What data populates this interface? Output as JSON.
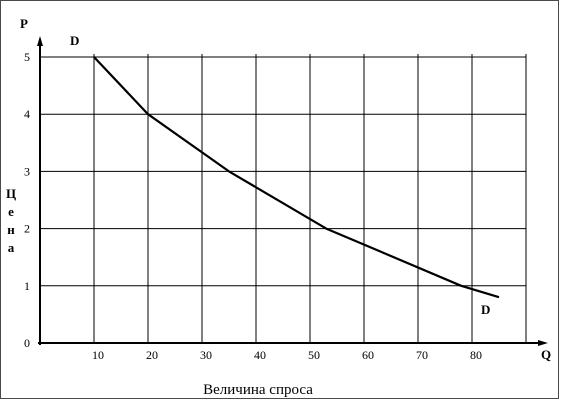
{
  "chart_data": {
    "type": "line",
    "title": "",
    "xlabel": "Величина спроса",
    "ylabel": "Цена",
    "x_axis_letter": "Q",
    "y_axis_letter": "P",
    "xlim": [
      0,
      90
    ],
    "ylim": [
      0,
      5.2
    ],
    "x_ticks": [
      10,
      20,
      30,
      40,
      50,
      60,
      70,
      80
    ],
    "y_ticks": [
      0,
      1,
      2,
      3,
      4,
      5
    ],
    "grid": true,
    "series": [
      {
        "name": "D",
        "x": [
          10,
          20,
          35,
          53,
          78,
          85
        ],
        "y": [
          5,
          4,
          3,
          2,
          1,
          0.8
        ]
      }
    ],
    "curve_labels": {
      "start": "D",
      "end": "D"
    },
    "colors": {
      "line": "#000000",
      "grid": "#000000",
      "frame": "#4a4a4a"
    }
  }
}
